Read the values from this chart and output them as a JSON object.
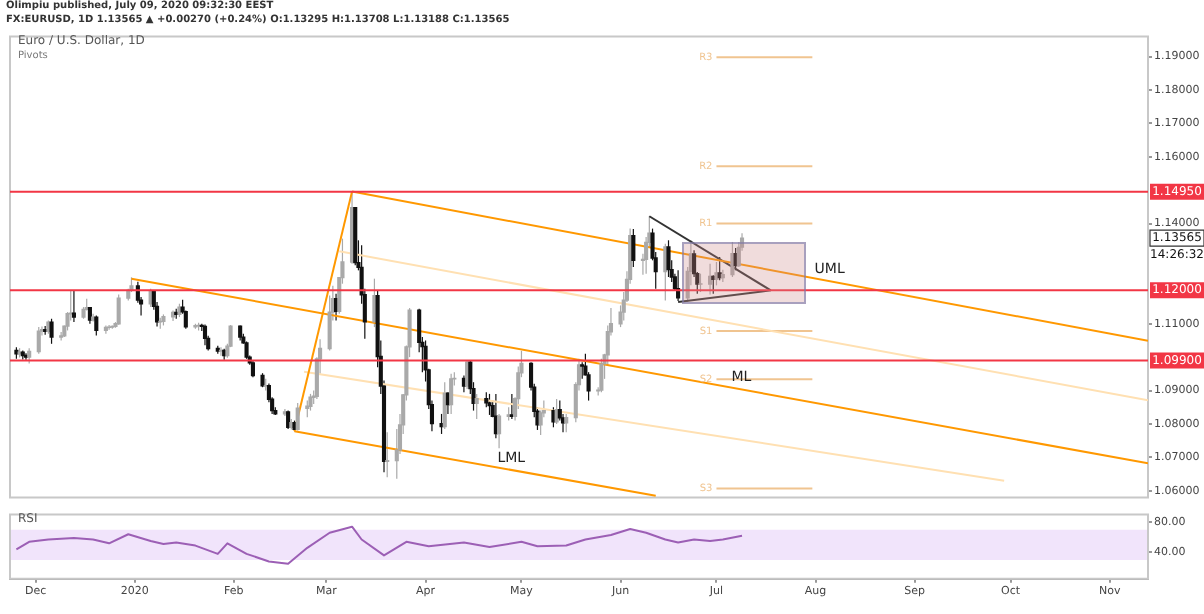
{
  "chart_data": [
    {
      "type": "candlestick",
      "title": "Euro / U.S. Dollar, 1D",
      "subtitle": "FX:EURUSD, 1D 1.13565 ▲ +0.00270 (+0.24%) O:1.13295 H:1.13708 L:1.13188 C:1.13565",
      "annotations": [
        "Olimpiu published, July 09, 2020 09:32:30 EEST",
        "Pivots",
        "14:26:32",
        "1.13565"
      ],
      "tick_labels": "y",
      "xlim": [
        "2019-11-23",
        "2020-11-13"
      ],
      "ylim": [
        1.058,
        1.196
      ],
      "yticks": [
        {
          "value": 1.06,
          "label": "1.06000"
        },
        {
          "value": 1.07,
          "label": "1.07000"
        },
        {
          "value": 1.08,
          "label": "1.08000"
        },
        {
          "value": 1.09,
          "label": "1.09000"
        },
        {
          "value": 1.11,
          "label": "1.11000"
        },
        {
          "value": 1.14,
          "label": "1.14000"
        },
        {
          "value": 1.16,
          "label": "1.16000"
        },
        {
          "value": 1.17,
          "label": "1.17000"
        },
        {
          "value": 1.18,
          "label": "1.18000"
        },
        {
          "value": 1.19,
          "label": "1.19000"
        }
      ],
      "ref_lines": [
        {
          "axis": "y",
          "value": 1.1495,
          "label": "1.14950",
          "color": "#f23645"
        },
        {
          "axis": "y",
          "value": 1.12,
          "label": "1.12000",
          "color": "#f23645"
        },
        {
          "axis": "y",
          "value": 1.099,
          "label": "1.09900",
          "color": "#f23645"
        }
      ],
      "x": [
        "2019-11-25",
        "2019-11-26",
        "2019-11-27",
        "2019-11-28",
        "2019-11-29",
        "2019-12-02",
        "2019-12-03",
        "2019-12-04",
        "2019-12-05",
        "2019-12-06",
        "2019-12-09",
        "2019-12-10",
        "2019-12-11",
        "2019-12-12",
        "2019-12-13",
        "2019-12-16",
        "2019-12-17",
        "2019-12-18",
        "2019-12-19",
        "2019-12-20",
        "2019-12-23",
        "2019-12-24",
        "2019-12-25",
        "2019-12-26",
        "2019-12-27",
        "2019-12-30",
        "2019-12-31",
        "2020-01-02",
        "2020-01-03",
        "2020-01-06",
        "2020-01-07",
        "2020-01-08",
        "2020-01-09",
        "2020-01-10",
        "2020-01-13",
        "2020-01-14",
        "2020-01-15",
        "2020-01-16",
        "2020-01-17",
        "2020-01-20",
        "2020-01-21",
        "2020-01-22",
        "2020-01-23",
        "2020-01-24",
        "2020-01-27",
        "2020-01-28",
        "2020-01-29",
        "2020-01-30",
        "2020-01-31",
        "2020-02-03",
        "2020-02-04",
        "2020-02-05",
        "2020-02-06",
        "2020-02-07",
        "2020-02-10",
        "2020-02-11",
        "2020-02-12",
        "2020-02-13",
        "2020-02-14",
        "2020-02-17",
        "2020-02-18",
        "2020-02-19",
        "2020-02-20",
        "2020-02-21",
        "2020-02-24",
        "2020-02-25",
        "2020-02-26",
        "2020-02-27",
        "2020-02-28",
        "2020-03-02",
        "2020-03-03",
        "2020-03-04",
        "2020-03-05",
        "2020-03-06",
        "2020-03-09",
        "2020-03-10",
        "2020-03-11",
        "2020-03-12",
        "2020-03-13",
        "2020-03-16",
        "2020-03-17",
        "2020-03-18",
        "2020-03-19",
        "2020-03-20",
        "2020-03-23",
        "2020-03-24",
        "2020-03-25",
        "2020-03-26",
        "2020-03-27",
        "2020-03-30",
        "2020-03-31",
        "2020-04-01",
        "2020-04-02",
        "2020-04-03",
        "2020-04-06",
        "2020-04-07",
        "2020-04-08",
        "2020-04-09",
        "2020-04-10",
        "2020-04-13",
        "2020-04-14",
        "2020-04-15",
        "2020-04-16",
        "2020-04-17",
        "2020-04-20",
        "2020-04-21",
        "2020-04-22",
        "2020-04-23",
        "2020-04-24",
        "2020-04-27",
        "2020-04-28",
        "2020-04-29",
        "2020-04-30",
        "2020-05-01",
        "2020-05-04",
        "2020-05-05",
        "2020-05-06",
        "2020-05-07",
        "2020-05-08",
        "2020-05-11",
        "2020-05-12",
        "2020-05-13",
        "2020-05-14",
        "2020-05-15",
        "2020-05-18",
        "2020-05-19",
        "2020-05-20",
        "2020-05-21",
        "2020-05-22",
        "2020-05-25",
        "2020-05-26",
        "2020-05-27",
        "2020-05-28",
        "2020-05-29",
        "2020-06-01",
        "2020-06-02",
        "2020-06-03",
        "2020-06-04",
        "2020-06-05",
        "2020-06-08",
        "2020-06-09",
        "2020-06-10",
        "2020-06-11",
        "2020-06-12",
        "2020-06-15",
        "2020-06-16",
        "2020-06-17",
        "2020-06-18",
        "2020-06-19",
        "2020-06-22",
        "2020-06-23",
        "2020-06-24",
        "2020-06-25",
        "2020-06-26",
        "2020-06-29",
        "2020-06-30",
        "2020-07-01",
        "2020-07-02",
        "2020-07-03",
        "2020-07-06",
        "2020-07-07",
        "2020-07-08",
        "2020-07-09"
      ],
      "ohlc": [
        [
          1.102,
          1.103,
          1.0995,
          1.101
        ],
        [
          1.101,
          1.1027,
          1.0999,
          1.1015
        ],
        [
          1.1015,
          1.102,
          1.0993,
          1.1005
        ],
        [
          1.1005,
          1.1012,
          1.0992,
          1.1
        ],
        [
          1.1,
          1.1027,
          1.0981,
          1.1017
        ],
        [
          1.1017,
          1.109,
          1.101,
          1.1078
        ],
        [
          1.1078,
          1.1092,
          1.1065,
          1.1082
        ],
        [
          1.1082,
          1.1093,
          1.1067,
          1.1077
        ],
        [
          1.1077,
          1.111,
          1.107,
          1.1105
        ],
        [
          1.1105,
          1.1115,
          1.104,
          1.106
        ],
        [
          1.106,
          1.1075,
          1.105,
          1.1064
        ],
        [
          1.1064,
          1.1095,
          1.106,
          1.1093
        ],
        [
          1.1093,
          1.1135,
          1.108,
          1.113
        ],
        [
          1.113,
          1.12,
          1.111,
          1.1132
        ],
        [
          1.1132,
          1.12,
          1.1105,
          1.112
        ],
        [
          1.112,
          1.115,
          1.1115,
          1.1143
        ],
        [
          1.1143,
          1.1175,
          1.114,
          1.1148
        ],
        [
          1.1148,
          1.115,
          1.11,
          1.1111
        ],
        [
          1.1111,
          1.113,
          1.1107,
          1.112
        ],
        [
          1.112,
          1.1125,
          1.1065,
          1.108
        ],
        [
          1.108,
          1.1095,
          1.107,
          1.1089
        ],
        [
          1.1089,
          1.1096,
          1.1082,
          1.109
        ],
        [
          1.109,
          1.1095,
          1.1085,
          1.1092
        ],
        [
          1.1092,
          1.1105,
          1.1088,
          1.11
        ],
        [
          1.11,
          1.1188,
          1.1097,
          1.1177
        ],
        [
          1.1177,
          1.1205,
          1.117,
          1.12
        ],
        [
          1.12,
          1.1239,
          1.1195,
          1.1213
        ],
        [
          1.1213,
          1.1226,
          1.1163,
          1.1171
        ],
        [
          1.1171,
          1.118,
          1.1125,
          1.116
        ],
        [
          1.116,
          1.1205,
          1.115,
          1.1196
        ],
        [
          1.1196,
          1.12,
          1.1142,
          1.1152
        ],
        [
          1.1152,
          1.1165,
          1.1092,
          1.1106
        ],
        [
          1.1106,
          1.1118,
          1.1085,
          1.1107
        ],
        [
          1.1107,
          1.1128,
          1.1095,
          1.1121
        ],
        [
          1.1121,
          1.114,
          1.1108,
          1.1134
        ],
        [
          1.1134,
          1.1145,
          1.1115,
          1.1128
        ],
        [
          1.1128,
          1.116,
          1.112,
          1.115
        ],
        [
          1.115,
          1.1172,
          1.113,
          1.1136
        ],
        [
          1.1136,
          1.114,
          1.1085,
          1.1091
        ],
        [
          1.1091,
          1.11,
          1.1085,
          1.1094
        ],
        [
          1.1094,
          1.1103,
          1.108,
          1.1095
        ],
        [
          1.1095,
          1.11,
          1.1078,
          1.1092
        ],
        [
          1.1092,
          1.1098,
          1.1036,
          1.1056
        ],
        [
          1.1056,
          1.1064,
          1.102,
          1.1026
        ],
        [
          1.1026,
          1.1034,
          1.101,
          1.1018
        ],
        [
          1.1018,
          1.103,
          1.1004,
          1.102
        ],
        [
          1.102,
          1.1025,
          1.0992,
          1.1005
        ],
        [
          1.1005,
          1.104,
          1.0998,
          1.1033
        ],
        [
          1.1033,
          1.1096,
          1.103,
          1.1093
        ],
        [
          1.1093,
          1.1095,
          1.105,
          1.106
        ],
        [
          1.106,
          1.107,
          1.104,
          1.1043
        ],
        [
          1.1043,
          1.1047,
          1.0995,
          1.1
        ],
        [
          1.1,
          1.1005,
          1.0977,
          1.0983
        ],
        [
          1.0983,
          1.099,
          1.094,
          1.0945
        ],
        [
          1.0945,
          1.0952,
          1.091,
          1.0914
        ],
        [
          1.0914,
          1.0935,
          1.09,
          1.0915
        ],
        [
          1.0915,
          1.0921,
          1.0865,
          1.0874
        ],
        [
          1.0874,
          1.088,
          1.083,
          1.084
        ],
        [
          1.084,
          1.085,
          1.0827,
          1.083
        ],
        [
          1.083,
          1.0845,
          1.0824,
          1.0836
        ],
        [
          1.0836,
          1.084,
          1.0785,
          1.079
        ],
        [
          1.079,
          1.0815,
          1.0783,
          1.0804
        ],
        [
          1.0804,
          1.081,
          1.0778,
          1.0784
        ],
        [
          1.0784,
          1.0863,
          1.078,
          1.0847
        ],
        [
          1.0847,
          1.087,
          1.082,
          1.0853
        ],
        [
          1.0853,
          1.089,
          1.084,
          1.088
        ],
        [
          1.088,
          1.09,
          1.086,
          1.0883
        ],
        [
          1.0883,
          1.1,
          1.0875,
          1.0995
        ],
        [
          1.0995,
          1.1054,
          1.095,
          1.1026
        ],
        [
          1.1026,
          1.1185,
          1.102,
          1.1135
        ],
        [
          1.1135,
          1.1214,
          1.111,
          1.1175
        ],
        [
          1.1175,
          1.119,
          1.111,
          1.1137
        ],
        [
          1.1137,
          1.124,
          1.113,
          1.1238
        ],
        [
          1.1238,
          1.1355,
          1.122,
          1.1285
        ],
        [
          1.1285,
          1.1496,
          1.128,
          1.1448
        ],
        [
          1.1448,
          1.145,
          1.1275,
          1.1283
        ],
        [
          1.1283,
          1.135,
          1.126,
          1.1269
        ],
        [
          1.1269,
          1.1335,
          1.116,
          1.1187
        ],
        [
          1.1187,
          1.1205,
          1.1055,
          1.1106
        ],
        [
          1.1106,
          1.1235,
          1.109,
          1.1184
        ],
        [
          1.1184,
          1.12,
          1.097,
          1.1002
        ],
        [
          1.1002,
          1.105,
          1.089,
          1.0913
        ],
        [
          1.0913,
          1.093,
          1.0655,
          1.0688
        ],
        [
          1.0688,
          1.0775,
          1.064,
          1.069
        ],
        [
          1.069,
          1.0785,
          1.0636,
          1.0722
        ],
        [
          1.0722,
          1.083,
          1.071,
          1.0797
        ],
        [
          1.0797,
          1.089,
          1.077,
          1.0887
        ],
        [
          1.0887,
          1.1035,
          1.087,
          1.1031
        ],
        [
          1.1031,
          1.1147,
          1.1,
          1.1141
        ],
        [
          1.1141,
          1.1145,
          1.1015,
          1.1044
        ],
        [
          1.1044,
          1.106,
          1.0955,
          1.1032
        ],
        [
          1.1032,
          1.105,
          1.0927,
          1.0962
        ],
        [
          1.0962,
          1.0965,
          1.0845,
          1.0858
        ],
        [
          1.0858,
          1.087,
          1.0778,
          1.0801
        ],
        [
          1.0801,
          1.083,
          1.077,
          1.0792
        ],
        [
          1.0792,
          1.0925,
          1.0785,
          1.0892
        ],
        [
          1.0892,
          1.0895,
          1.083,
          1.0858
        ],
        [
          1.0858,
          1.095,
          1.083,
          1.0935
        ],
        [
          1.0935,
          1.0955,
          1.0915,
          1.0936
        ],
        [
          1.0936,
          1.0945,
          1.0895,
          1.0913
        ],
        [
          1.0913,
          1.099,
          1.0905,
          1.0985
        ],
        [
          1.0985,
          1.099,
          1.089,
          1.0906
        ],
        [
          1.0906,
          1.0925,
          1.084,
          1.0862
        ],
        [
          1.0862,
          1.089,
          1.0815,
          1.0876
        ],
        [
          1.0876,
          1.0895,
          1.085,
          1.0863
        ],
        [
          1.0863,
          1.089,
          1.0827,
          1.0855
        ],
        [
          1.0855,
          1.087,
          1.082,
          1.0823
        ],
        [
          1.0823,
          1.089,
          1.0757,
          1.0771
        ],
        [
          1.0771,
          1.083,
          1.0727,
          1.0823
        ],
        [
          1.0823,
          1.085,
          1.081,
          1.0827
        ],
        [
          1.0827,
          1.089,
          1.0815,
          1.0823
        ],
        [
          1.0823,
          1.088,
          1.081,
          1.0876
        ],
        [
          1.0876,
          1.0972,
          1.0845,
          1.0953
        ],
        [
          1.0953,
          1.1019,
          1.094,
          1.0981
        ],
        [
          1.0981,
          1.0985,
          1.09,
          1.091
        ],
        [
          1.091,
          1.092,
          1.082,
          1.0838
        ],
        [
          1.0838,
          1.085,
          1.0782,
          1.0797
        ],
        [
          1.0797,
          1.084,
          1.0767,
          1.0833
        ],
        [
          1.0833,
          1.087,
          1.082,
          1.084
        ],
        [
          1.084,
          1.085,
          1.079,
          1.0806
        ],
        [
          1.0806,
          1.0875,
          1.08,
          1.0843
        ],
        [
          1.0843,
          1.087,
          1.081,
          1.0818
        ],
        [
          1.0818,
          1.083,
          1.0775,
          1.0803
        ],
        [
          1.0803,
          1.083,
          1.0775,
          1.0819
        ],
        [
          1.0819,
          1.0925,
          1.0805,
          1.0918
        ],
        [
          1.0918,
          1.0995,
          1.09,
          1.0977
        ],
        [
          1.0977,
          1.0985,
          1.0935,
          1.0973
        ],
        [
          1.0973,
          1.101,
          1.0945,
          1.0947
        ],
        [
          1.0947,
          1.0955,
          1.087,
          1.0899
        ],
        [
          1.0899,
          1.091,
          1.0885,
          1.0901
        ],
        [
          1.0901,
          1.0995,
          1.0895,
          1.098
        ],
        [
          1.098,
          1.101,
          1.0935,
          1.1007
        ],
        [
          1.1007,
          1.1095,
          1.0975,
          1.1076
        ],
        [
          1.1076,
          1.1147,
          1.1065,
          1.11
        ],
        [
          1.11,
          1.1155,
          1.109,
          1.1135
        ],
        [
          1.1135,
          1.1195,
          1.111,
          1.1171
        ],
        [
          1.1171,
          1.1257,
          1.1165,
          1.1233
        ],
        [
          1.1233,
          1.1385,
          1.122,
          1.1364
        ],
        [
          1.1364,
          1.1384,
          1.127,
          1.129
        ],
        [
          1.129,
          1.131,
          1.1247,
          1.1293
        ],
        [
          1.1293,
          1.136,
          1.125,
          1.1344
        ],
        [
          1.1344,
          1.1422,
          1.133,
          1.1371
        ],
        [
          1.1371,
          1.1385,
          1.129,
          1.1297
        ],
        [
          1.1297,
          1.1315,
          1.1205,
          1.1256
        ],
        [
          1.1256,
          1.134,
          1.117,
          1.133
        ],
        [
          1.133,
          1.135,
          1.124,
          1.1262
        ],
        [
          1.1262,
          1.129,
          1.1225,
          1.124
        ],
        [
          1.124,
          1.125,
          1.12,
          1.1205
        ],
        [
          1.1205,
          1.126,
          1.1168,
          1.1178
        ],
        [
          1.1178,
          1.127,
          1.1165,
          1.1257
        ],
        [
          1.1257,
          1.135,
          1.1215,
          1.1309
        ],
        [
          1.1309,
          1.132,
          1.124,
          1.125
        ],
        [
          1.125,
          1.1255,
          1.119,
          1.1219
        ],
        [
          1.1219,
          1.125,
          1.1195,
          1.1219
        ],
        [
          1.1219,
          1.128,
          1.1188,
          1.1242
        ],
        [
          1.1242,
          1.1245,
          1.119,
          1.1233
        ],
        [
          1.1233,
          1.1285,
          1.1215,
          1.1252
        ],
        [
          1.1252,
          1.13,
          1.123,
          1.1238
        ],
        [
          1.1238,
          1.1262,
          1.1225,
          1.1247
        ],
        [
          1.1247,
          1.1345,
          1.124,
          1.131
        ],
        [
          1.131,
          1.1327,
          1.126,
          1.1274
        ],
        [
          1.1274,
          1.1345,
          1.127,
          1.1329
        ],
        [
          1.13295,
          1.13708,
          1.13188,
          1.13565
        ]
      ],
      "series": [
        {
          "type": "line",
          "name": "UML",
          "color": "#ff9800",
          "x": [
            "2020-03-09",
            "2020-11-13"
          ],
          "values": [
            1.1496,
            1.1049
          ]
        },
        {
          "type": "line",
          "name": "ML",
          "color": "#ff9800",
          "x": [
            "2019-12-31",
            "2020-11-13"
          ],
          "values": [
            1.1235,
            1.0682
          ]
        },
        {
          "type": "line",
          "name": "LML",
          "color": "#ff9800",
          "x": [
            "2020-02-20",
            "2020-06-12"
          ],
          "values": [
            1.0778,
            1.0585
          ]
        },
        {
          "type": "line",
          "color": "#ff9800",
          "x": [
            "2020-02-20",
            "2020-03-09"
          ],
          "values": [
            1.0778,
            1.1496
          ]
        },
        {
          "type": "line",
          "color": "#ffe0b2",
          "x": [
            "2020-03-05",
            "2020-11-13"
          ],
          "values": [
            1.1317,
            1.0871
          ]
        },
        {
          "type": "line",
          "color": "#ffe0b2",
          "x": [
            "2020-02-23",
            "2020-09-29"
          ],
          "values": [
            1.0956,
            1.063
          ]
        },
        {
          "type": "line",
          "color": "#333333",
          "x": [
            "2020-06-10",
            "2020-07-18"
          ],
          "values": [
            1.1422,
            1.12
          ]
        },
        {
          "type": "line",
          "color": "#333333",
          "x": [
            "2020-06-19",
            "2020-07-18"
          ],
          "values": [
            1.1165,
            1.12
          ]
        },
        {
          "type": "line",
          "name": "R3",
          "color": "#f0c490",
          "x": [
            "2020-07-01",
            "2020-07-31"
          ],
          "values": [
            1.1898,
            1.1898
          ]
        },
        {
          "type": "line",
          "name": "R2",
          "color": "#f0c490",
          "x": [
            "2020-07-01",
            "2020-07-31"
          ],
          "values": [
            1.1572,
            1.1572
          ]
        },
        {
          "type": "line",
          "name": "R1",
          "color": "#f0c490",
          "x": [
            "2020-07-01",
            "2020-07-31"
          ],
          "values": [
            1.14,
            1.14
          ]
        },
        {
          "type": "line",
          "name": "S1",
          "color": "#f0c490",
          "x": [
            "2020-07-01",
            "2020-07-31"
          ],
          "values": [
            1.1078,
            1.1078
          ]
        },
        {
          "type": "line",
          "name": "S2",
          "color": "#f0c490",
          "x": [
            "2020-07-01",
            "2020-07-31"
          ],
          "values": [
            1.0934,
            1.0934
          ]
        },
        {
          "type": "line",
          "name": "S3",
          "color": "#f0c490",
          "x": [
            "2020-07-01",
            "2020-07-31"
          ],
          "values": [
            1.0607,
            1.0607
          ]
        }
      ]
    },
    {
      "type": "line",
      "title": "RSI",
      "color": "#9c5fb5",
      "xlim": [
        "2019-11-23",
        "2020-11-13"
      ],
      "xticks": [
        {
          "value": "2019-12-01",
          "label": "Dec"
        },
        {
          "value": "2020-01-01",
          "label": "2020"
        },
        {
          "value": "2020-02-01",
          "label": "Feb"
        },
        {
          "value": "2020-03-01",
          "label": "Mar"
        },
        {
          "value": "2020-04-01",
          "label": "Apr"
        },
        {
          "value": "2020-05-01",
          "label": "May"
        },
        {
          "value": "2020-06-01",
          "label": "Jun"
        },
        {
          "value": "2020-07-01",
          "label": "Jul"
        },
        {
          "value": "2020-08-01",
          "label": "Aug"
        },
        {
          "value": "2020-09-01",
          "label": "Sep"
        },
        {
          "value": "2020-10-01",
          "label": "Oct"
        },
        {
          "value": "2020-11-01",
          "label": "Nov"
        }
      ],
      "ylim": [
        5,
        90
      ],
      "yticks": [
        {
          "value": 40,
          "label": "40.00"
        },
        {
          "value": 80,
          "label": "80.00"
        }
      ],
      "bands": [
        {
          "axis": "y",
          "from": 30,
          "to": 70,
          "color": "#f1e4fb"
        }
      ],
      "x": [
        "2019-11-25",
        "2019-11-29",
        "2019-12-05",
        "2019-12-13",
        "2019-12-19",
        "2019-12-24",
        "2019-12-30",
        "2020-01-06",
        "2020-01-10",
        "2020-01-14",
        "2020-01-20",
        "2020-01-27",
        "2020-01-30",
        "2020-02-05",
        "2020-02-12",
        "2020-02-18",
        "2020-02-24",
        "2020-03-02",
        "2020-03-09",
        "2020-03-12",
        "2020-03-19",
        "2020-03-26",
        "2020-04-02",
        "2020-04-13",
        "2020-04-21",
        "2020-05-01",
        "2020-05-06",
        "2020-05-15",
        "2020-05-21",
        "2020-05-29",
        "2020-06-04",
        "2020-06-09",
        "2020-06-15",
        "2020-06-19",
        "2020-06-24",
        "2020-06-29",
        "2020-07-03",
        "2020-07-09"
      ],
      "values": [
        44,
        54,
        57,
        59,
        57,
        52,
        64,
        55,
        51,
        53,
        49,
        38,
        52,
        38,
        28,
        25,
        46,
        66,
        74,
        57,
        36,
        54,
        48,
        53,
        47,
        54,
        48,
        49,
        57,
        63,
        71,
        66,
        57,
        53,
        57,
        55,
        57,
        62
      ]
    }
  ]
}
